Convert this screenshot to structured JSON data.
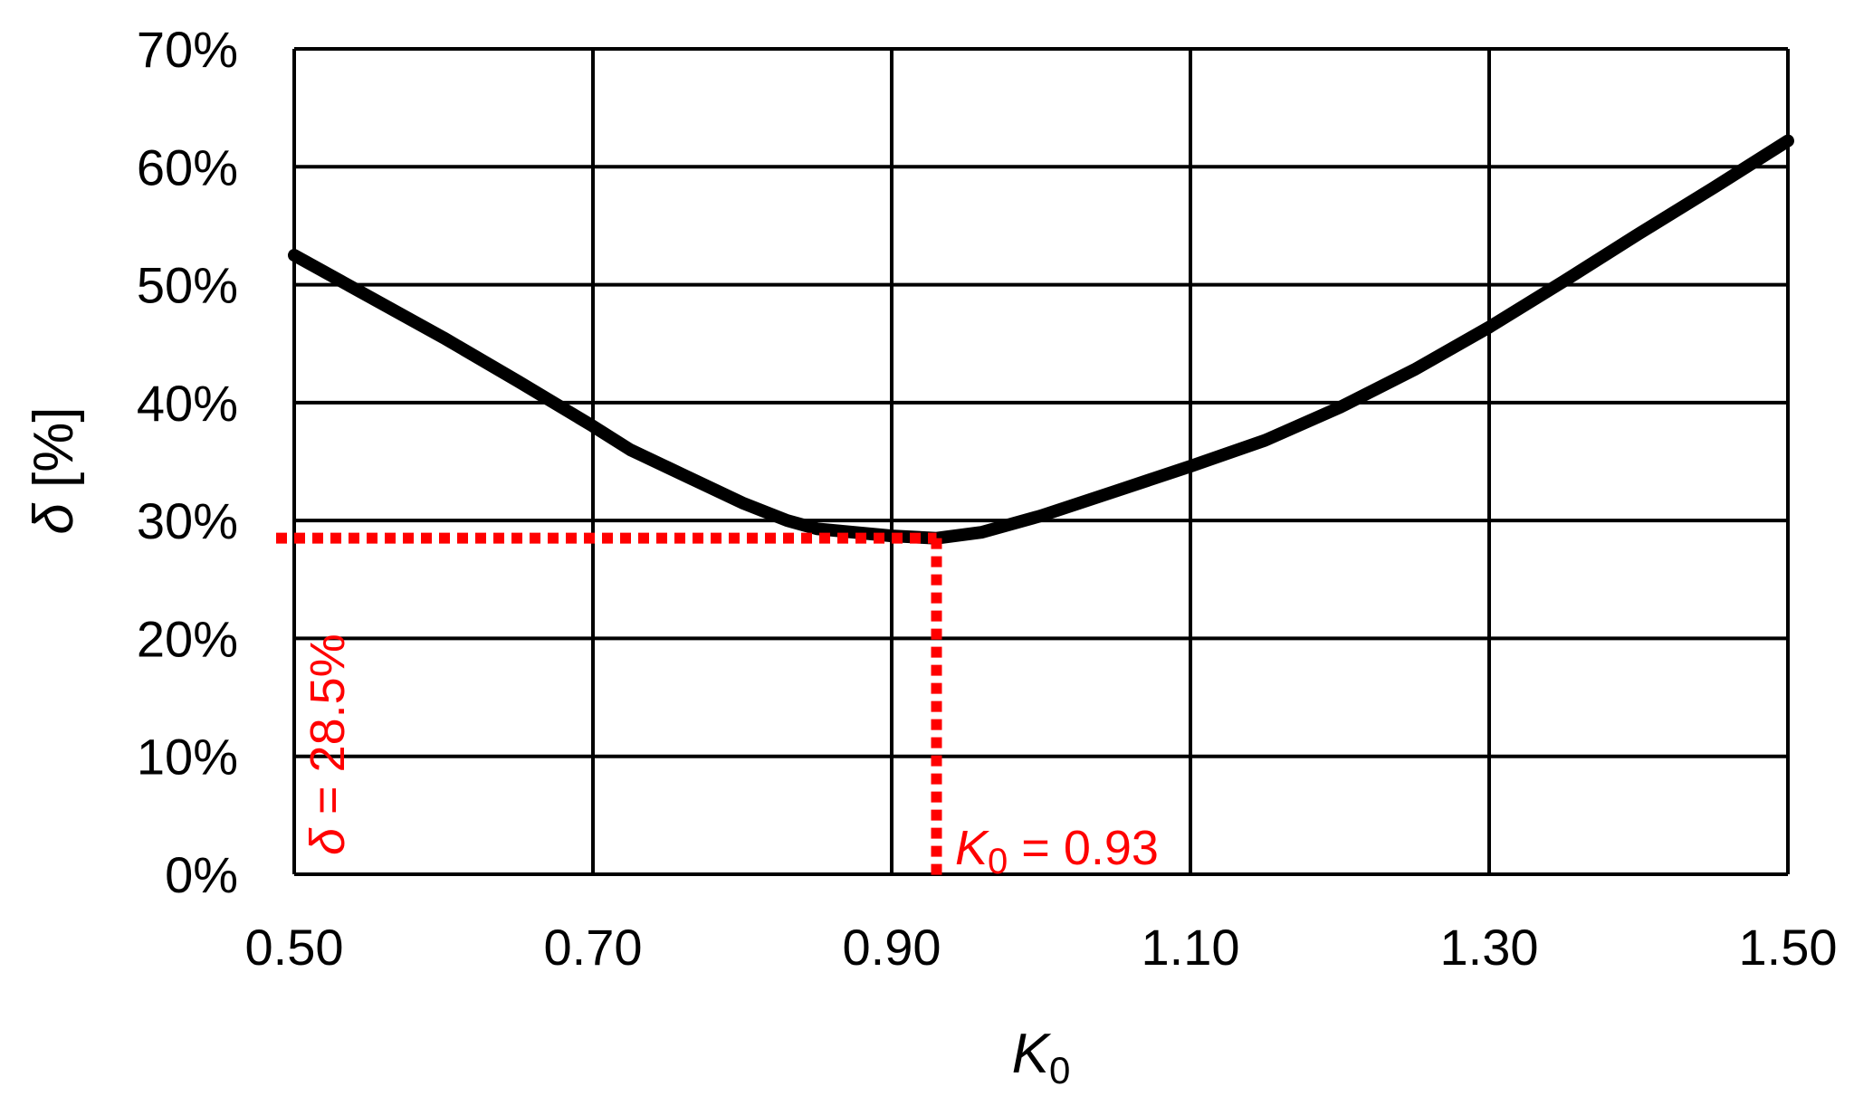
{
  "chart_data": {
    "type": "line",
    "xlabel": {
      "symbol": "K",
      "subscript": "0"
    },
    "ylabel": {
      "symbol": "δ",
      "rest": " [%]"
    },
    "xlim": [
      0.5,
      1.5
    ],
    "ylim": [
      0,
      0.7
    ],
    "x_ticks": [
      0.5,
      0.7,
      0.9,
      1.1,
      1.3,
      1.5
    ],
    "x_tick_labels": [
      "0.50",
      "0.70",
      "0.90",
      "1.10",
      "1.30",
      "1.50"
    ],
    "y_ticks": [
      0,
      0.1,
      0.2,
      0.3,
      0.4,
      0.5,
      0.6,
      0.7
    ],
    "y_tick_labels": [
      "0%",
      "10%",
      "20%",
      "30%",
      "40%",
      "50%",
      "60%",
      "70%"
    ],
    "grid": true,
    "series": [
      {
        "x": [
          0.5,
          0.55,
          0.6,
          0.65,
          0.7,
          0.725,
          0.75,
          0.8,
          0.83,
          0.85,
          0.9,
          0.93,
          0.96,
          1.0,
          1.05,
          1.1,
          1.15,
          1.2,
          1.25,
          1.3,
          1.35,
          1.4,
          1.45,
          1.5
        ],
        "y": [
          0.525,
          0.49,
          0.455,
          0.418,
          0.38,
          0.36,
          0.345,
          0.315,
          0.3,
          0.293,
          0.287,
          0.285,
          0.29,
          0.304,
          0.325,
          0.346,
          0.368,
          0.396,
          0.428,
          0.464,
          0.503,
          0.543,
          0.582,
          0.622
        ],
        "color": "#000000"
      }
    ],
    "annotations": {
      "color": "#ff0000",
      "point": {
        "x": 0.93,
        "y": 0.285
      },
      "x_label": {
        "symbol": "K",
        "subscript": "0",
        "rest": " = 0.93"
      },
      "y_label": {
        "symbol": "δ",
        "rest": " = 28.5%"
      }
    }
  }
}
